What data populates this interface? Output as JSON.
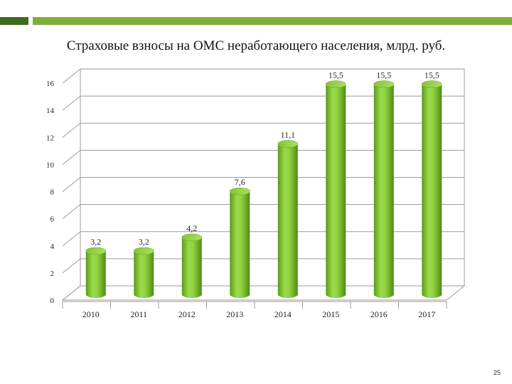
{
  "slide": {
    "title": "Страховые взносы на ОМС неработающего населения, млрд. руб.",
    "page_number": "25",
    "accent_dark": "#3d6b1f",
    "accent_light": "#7fae3a"
  },
  "chart_data": {
    "type": "bar",
    "title": "Страховые взносы на ОМС неработающего населения, млрд. руб.",
    "xlabel": "",
    "ylabel": "",
    "categories": [
      "2010",
      "2011",
      "2012",
      "2013",
      "2014",
      "2015",
      "2016",
      "2017"
    ],
    "values": [
      3.2,
      3.2,
      4.2,
      7.6,
      11.1,
      15.5,
      15.5,
      15.5
    ],
    "data_labels": [
      "3,2",
      "3,2",
      "4,2",
      "7,6",
      "11,1",
      "15,5",
      "15,5",
      "15,5"
    ],
    "y_ticks": [
      "0",
      "2",
      "4",
      "6",
      "8",
      "10",
      "12",
      "14",
      "16"
    ],
    "ylim": [
      0,
      16
    ],
    "grid": true,
    "legend": "none",
    "bar_color": "#8fcf3f",
    "bar_shape": "3d-cylinder"
  }
}
